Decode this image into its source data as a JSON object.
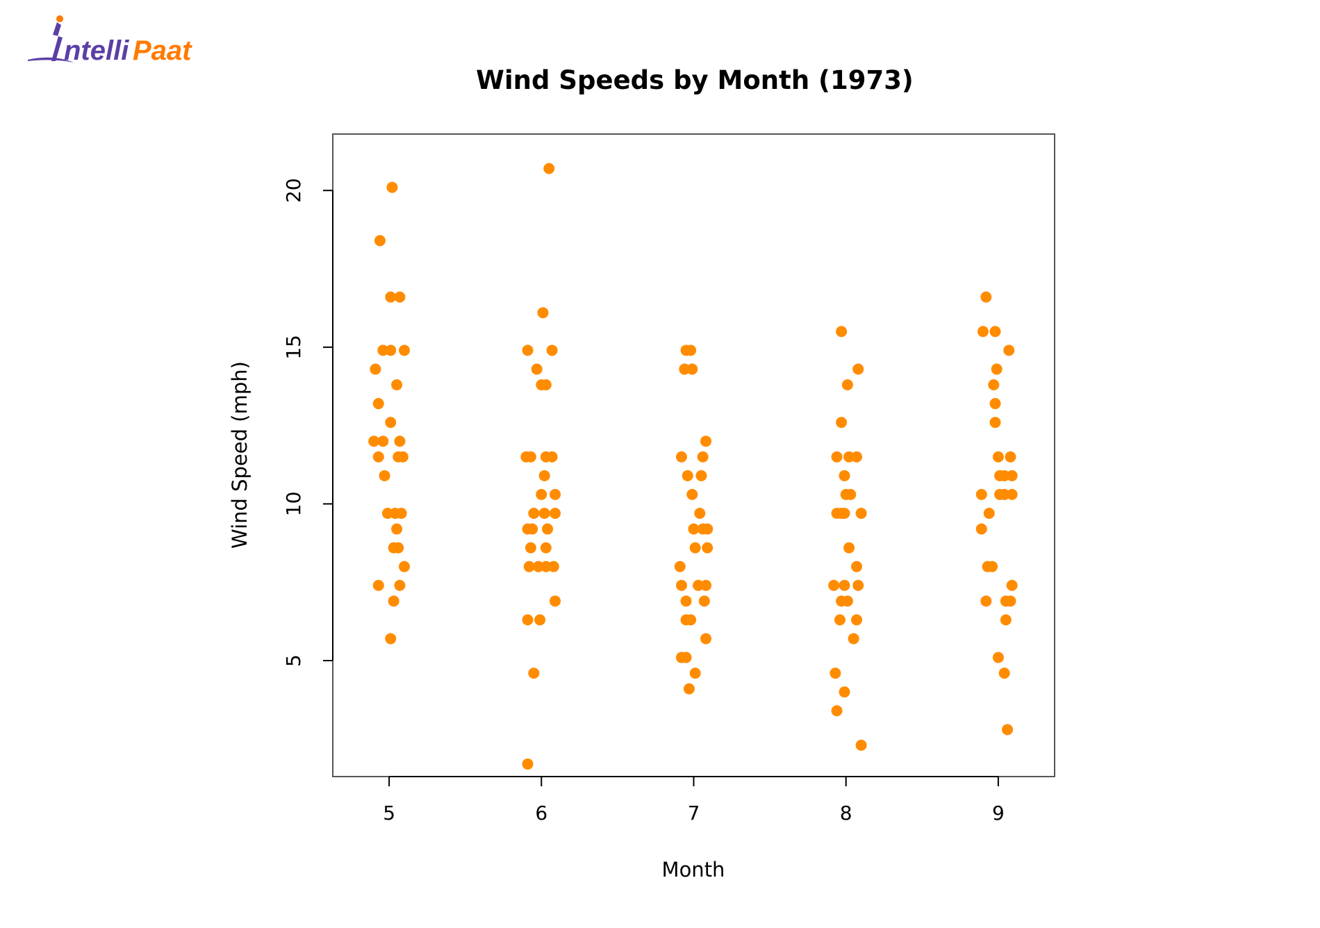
{
  "logo": {
    "text_prefix": "ntelli",
    "text_suffix": "Paat",
    "brand_color": "#ff7a00",
    "mark_color": "#5b3fa6"
  },
  "colors": {
    "point": "#ff8c00",
    "axis": "#000000",
    "frame": "#555555"
  },
  "chart_data": {
    "type": "scatter",
    "title": "Wind Speeds by Month (1973)",
    "xlabel": "Month",
    "ylabel": "Wind Speed (mph)",
    "xlim": [
      4.63,
      9.37
    ],
    "ylim": [
      1.3,
      21.8
    ],
    "x_ticks": [
      5,
      6,
      7,
      8,
      9
    ],
    "y_ticks": [
      5,
      10,
      15,
      20
    ],
    "x_tick_labels": [
      "5",
      "6",
      "7",
      "8",
      "9"
    ],
    "y_tick_labels": [
      "5",
      "10",
      "15",
      "20"
    ],
    "grid": false,
    "jitter": true,
    "points": [
      {
        "x": 5.02,
        "y": 20.1
      },
      {
        "x": 4.94,
        "y": 18.4
      },
      {
        "x": 5.01,
        "y": 16.6
      },
      {
        "x": 5.07,
        "y": 16.6
      },
      {
        "x": 4.96,
        "y": 14.9
      },
      {
        "x": 5.01,
        "y": 14.9
      },
      {
        "x": 5.1,
        "y": 14.9
      },
      {
        "x": 4.91,
        "y": 14.3
      },
      {
        "x": 5.05,
        "y": 13.8
      },
      {
        "x": 4.93,
        "y": 13.2
      },
      {
        "x": 5.01,
        "y": 12.6
      },
      {
        "x": 4.9,
        "y": 12.0
      },
      {
        "x": 4.96,
        "y": 12.0
      },
      {
        "x": 5.07,
        "y": 12.0
      },
      {
        "x": 4.93,
        "y": 11.5
      },
      {
        "x": 5.06,
        "y": 11.5
      },
      {
        "x": 5.09,
        "y": 11.5
      },
      {
        "x": 4.97,
        "y": 10.9
      },
      {
        "x": 4.99,
        "y": 9.7
      },
      {
        "x": 5.04,
        "y": 9.7
      },
      {
        "x": 5.08,
        "y": 9.7
      },
      {
        "x": 5.05,
        "y": 9.2
      },
      {
        "x": 5.03,
        "y": 8.6
      },
      {
        "x": 5.06,
        "y": 8.6
      },
      {
        "x": 5.1,
        "y": 8.0
      },
      {
        "x": 4.93,
        "y": 7.4
      },
      {
        "x": 5.07,
        "y": 7.4
      },
      {
        "x": 5.03,
        "y": 6.9
      },
      {
        "x": 5.01,
        "y": 5.7
      },
      {
        "x": 6.05,
        "y": 20.7
      },
      {
        "x": 6.01,
        "y": 16.1
      },
      {
        "x": 5.91,
        "y": 14.9
      },
      {
        "x": 6.07,
        "y": 14.9
      },
      {
        "x": 5.97,
        "y": 14.3
      },
      {
        "x": 6.0,
        "y": 13.8
      },
      {
        "x": 6.03,
        "y": 13.8
      },
      {
        "x": 5.9,
        "y": 11.5
      },
      {
        "x": 5.93,
        "y": 11.5
      },
      {
        "x": 6.03,
        "y": 11.5
      },
      {
        "x": 6.07,
        "y": 11.5
      },
      {
        "x": 6.02,
        "y": 10.9
      },
      {
        "x": 6.0,
        "y": 10.3
      },
      {
        "x": 6.09,
        "y": 10.3
      },
      {
        "x": 5.95,
        "y": 9.7
      },
      {
        "x": 6.02,
        "y": 9.7
      },
      {
        "x": 6.09,
        "y": 9.7
      },
      {
        "x": 5.91,
        "y": 9.2
      },
      {
        "x": 5.94,
        "y": 9.2
      },
      {
        "x": 6.04,
        "y": 9.2
      },
      {
        "x": 5.93,
        "y": 8.6
      },
      {
        "x": 6.03,
        "y": 8.6
      },
      {
        "x": 5.92,
        "y": 8.0
      },
      {
        "x": 5.98,
        "y": 8.0
      },
      {
        "x": 6.03,
        "y": 8.0
      },
      {
        "x": 6.08,
        "y": 8.0
      },
      {
        "x": 6.09,
        "y": 6.9
      },
      {
        "x": 5.91,
        "y": 6.3
      },
      {
        "x": 5.99,
        "y": 6.3
      },
      {
        "x": 5.95,
        "y": 4.6
      },
      {
        "x": 5.91,
        "y": 1.7
      },
      {
        "x": 6.95,
        "y": 14.9
      },
      {
        "x": 6.98,
        "y": 14.9
      },
      {
        "x": 6.94,
        "y": 14.3
      },
      {
        "x": 6.99,
        "y": 14.3
      },
      {
        "x": 7.08,
        "y": 12.0
      },
      {
        "x": 6.92,
        "y": 11.5
      },
      {
        "x": 7.06,
        "y": 11.5
      },
      {
        "x": 6.96,
        "y": 10.9
      },
      {
        "x": 7.05,
        "y": 10.9
      },
      {
        "x": 6.99,
        "y": 10.3
      },
      {
        "x": 7.04,
        "y": 9.7
      },
      {
        "x": 7.0,
        "y": 9.2
      },
      {
        "x": 7.06,
        "y": 9.2
      },
      {
        "x": 7.09,
        "y": 9.2
      },
      {
        "x": 7.01,
        "y": 8.6
      },
      {
        "x": 7.09,
        "y": 8.6
      },
      {
        "x": 6.91,
        "y": 8.0
      },
      {
        "x": 6.92,
        "y": 7.4
      },
      {
        "x": 7.03,
        "y": 7.4
      },
      {
        "x": 7.08,
        "y": 7.4
      },
      {
        "x": 6.95,
        "y": 6.9
      },
      {
        "x": 7.07,
        "y": 6.9
      },
      {
        "x": 6.95,
        "y": 6.3
      },
      {
        "x": 6.98,
        "y": 6.3
      },
      {
        "x": 7.08,
        "y": 5.7
      },
      {
        "x": 6.92,
        "y": 5.1
      },
      {
        "x": 6.95,
        "y": 5.1
      },
      {
        "x": 7.01,
        "y": 4.6
      },
      {
        "x": 6.97,
        "y": 4.1
      },
      {
        "x": 7.97,
        "y": 15.5
      },
      {
        "x": 8.08,
        "y": 14.3
      },
      {
        "x": 8.01,
        "y": 13.8
      },
      {
        "x": 7.97,
        "y": 12.6
      },
      {
        "x": 7.94,
        "y": 11.5
      },
      {
        "x": 8.02,
        "y": 11.5
      },
      {
        "x": 8.07,
        "y": 11.5
      },
      {
        "x": 7.99,
        "y": 10.9
      },
      {
        "x": 8.0,
        "y": 10.3
      },
      {
        "x": 8.03,
        "y": 10.3
      },
      {
        "x": 7.94,
        "y": 9.7
      },
      {
        "x": 7.97,
        "y": 9.7
      },
      {
        "x": 7.99,
        "y": 9.7
      },
      {
        "x": 8.1,
        "y": 9.7
      },
      {
        "x": 8.02,
        "y": 8.6
      },
      {
        "x": 8.07,
        "y": 8.0
      },
      {
        "x": 7.92,
        "y": 7.4
      },
      {
        "x": 7.99,
        "y": 7.4
      },
      {
        "x": 8.08,
        "y": 7.4
      },
      {
        "x": 7.97,
        "y": 6.9
      },
      {
        "x": 8.01,
        "y": 6.9
      },
      {
        "x": 7.96,
        "y": 6.3
      },
      {
        "x": 8.07,
        "y": 6.3
      },
      {
        "x": 8.05,
        "y": 5.7
      },
      {
        "x": 7.93,
        "y": 4.6
      },
      {
        "x": 7.99,
        "y": 4.0
      },
      {
        "x": 7.94,
        "y": 3.4
      },
      {
        "x": 8.1,
        "y": 2.3
      },
      {
        "x": 8.92,
        "y": 16.6
      },
      {
        "x": 8.9,
        "y": 15.5
      },
      {
        "x": 8.98,
        "y": 15.5
      },
      {
        "x": 9.07,
        "y": 14.9
      },
      {
        "x": 8.99,
        "y": 14.3
      },
      {
        "x": 8.97,
        "y": 13.8
      },
      {
        "x": 8.98,
        "y": 13.2
      },
      {
        "x": 8.98,
        "y": 12.6
      },
      {
        "x": 9.0,
        "y": 11.5
      },
      {
        "x": 9.08,
        "y": 11.5
      },
      {
        "x": 9.01,
        "y": 10.9
      },
      {
        "x": 9.04,
        "y": 10.9
      },
      {
        "x": 9.09,
        "y": 10.9
      },
      {
        "x": 8.89,
        "y": 10.3
      },
      {
        "x": 9.01,
        "y": 10.3
      },
      {
        "x": 9.04,
        "y": 10.3
      },
      {
        "x": 9.09,
        "y": 10.3
      },
      {
        "x": 8.94,
        "y": 9.7
      },
      {
        "x": 8.89,
        "y": 9.2
      },
      {
        "x": 8.93,
        "y": 8.0
      },
      {
        "x": 8.96,
        "y": 8.0
      },
      {
        "x": 9.09,
        "y": 7.4
      },
      {
        "x": 8.92,
        "y": 6.9
      },
      {
        "x": 9.05,
        "y": 6.9
      },
      {
        "x": 9.08,
        "y": 6.9
      },
      {
        "x": 9.05,
        "y": 6.3
      },
      {
        "x": 9.0,
        "y": 5.1
      },
      {
        "x": 9.04,
        "y": 4.6
      },
      {
        "x": 9.06,
        "y": 2.8
      }
    ]
  }
}
